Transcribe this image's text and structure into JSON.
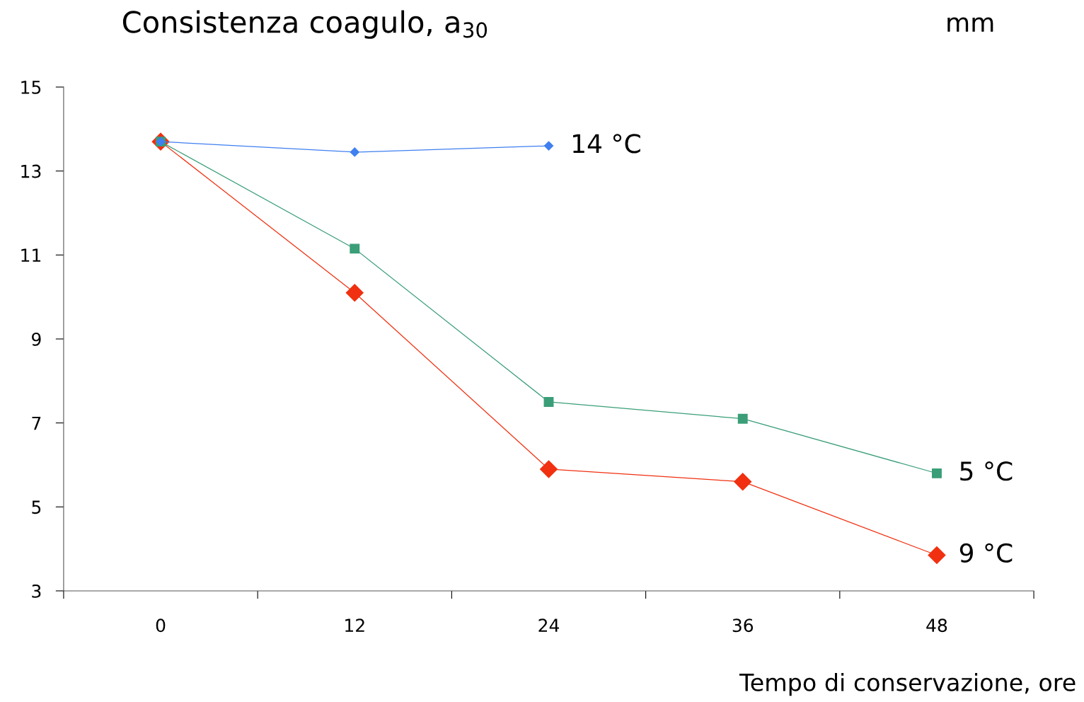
{
  "chart_data": {
    "type": "line",
    "title": "Consistenza coagulo, a$_{30}$",
    "ylabel": "mm",
    "xlabel": "Tempo di conservazione, ore",
    "categories": [
      "0",
      "12",
      "24",
      "36",
      "48"
    ],
    "series": [
      {
        "name": "14 °C",
        "color": "#3f7ff0",
        "marker": "diamond",
        "values": [
          13.7,
          13.45,
          13.6,
          null,
          null
        ]
      },
      {
        "name": "5 °C",
        "color": "#3a9e78",
        "marker": "square",
        "values": [
          13.7,
          11.15,
          7.5,
          7.1,
          5.8
        ]
      },
      {
        "name": "9 °C",
        "color": "#f03010",
        "marker": "diamond",
        "values": [
          13.7,
          10.1,
          5.9,
          5.6,
          3.85
        ]
      }
    ],
    "ylim": [
      3,
      15
    ],
    "yticks": [
      3,
      5,
      7,
      9,
      11,
      13,
      15
    ],
    "grid": false,
    "legend": false
  }
}
